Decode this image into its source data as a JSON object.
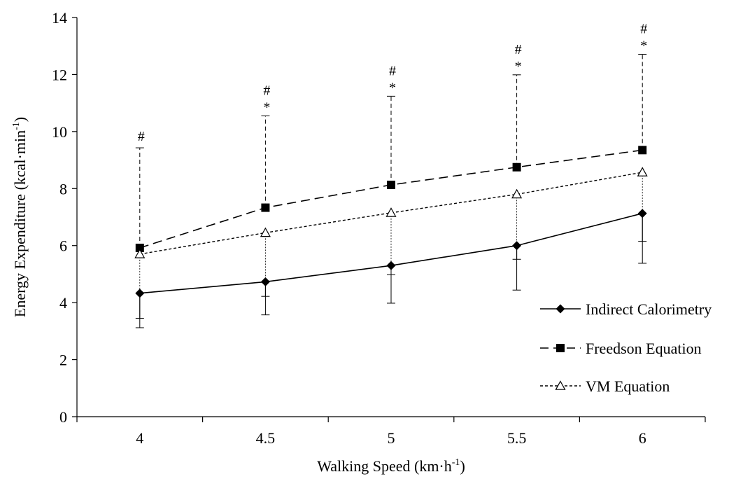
{
  "chart_data": {
    "type": "line",
    "xlabel": "Walking Speed (km·h",
    "xlabel_sup": "-1",
    "xlabel_end": ")",
    "ylabel": "Energy Expenditure (kcal·min",
    "ylabel_sup": "-1",
    "ylabel_end": ")",
    "x": [
      4,
      4.5,
      5,
      5.5,
      6
    ],
    "x_tick_labels": [
      "4",
      "4.5",
      "5",
      "5.5",
      "6"
    ],
    "ylim": [
      0,
      14
    ],
    "y_ticks": [
      0,
      2,
      4,
      6,
      8,
      10,
      12,
      14
    ],
    "y_tick_labels": [
      "0",
      "2",
      "4",
      "6",
      "8",
      "10",
      "12",
      "14"
    ],
    "grid": false,
    "legend_position": "bottom-right",
    "series": [
      {
        "name": "Indirect Calorimetry",
        "values": [
          4.33,
          4.73,
          5.3,
          6.0,
          7.13
        ],
        "error_low": [
          3.12,
          3.57,
          3.98,
          4.44,
          5.38
        ],
        "error_high": [
          3.45,
          4.22,
          4.98,
          5.52,
          6.15
        ],
        "marker": "diamond",
        "line_style": "solid"
      },
      {
        "name": "Freedson Equation",
        "values": [
          5.92,
          7.33,
          8.13,
          8.75,
          9.35
        ],
        "error_high": [
          9.43,
          10.55,
          11.24,
          11.99,
          12.71
        ],
        "marker": "square",
        "line_style": "long-dash"
      },
      {
        "name": "VM Equation",
        "values": [
          5.7,
          6.45,
          7.15,
          7.8,
          8.57
        ],
        "marker": "triangle-open",
        "line_style": "short-dash"
      }
    ],
    "annotations": [
      {
        "x": 4,
        "marks": [
          "#"
        ]
      },
      {
        "x": 4.5,
        "marks": [
          "#",
          "*"
        ]
      },
      {
        "x": 5,
        "marks": [
          "#",
          "*"
        ]
      },
      {
        "x": 5.5,
        "marks": [
          "#",
          "*"
        ]
      },
      {
        "x": 6,
        "marks": [
          "#",
          "*"
        ]
      }
    ]
  }
}
